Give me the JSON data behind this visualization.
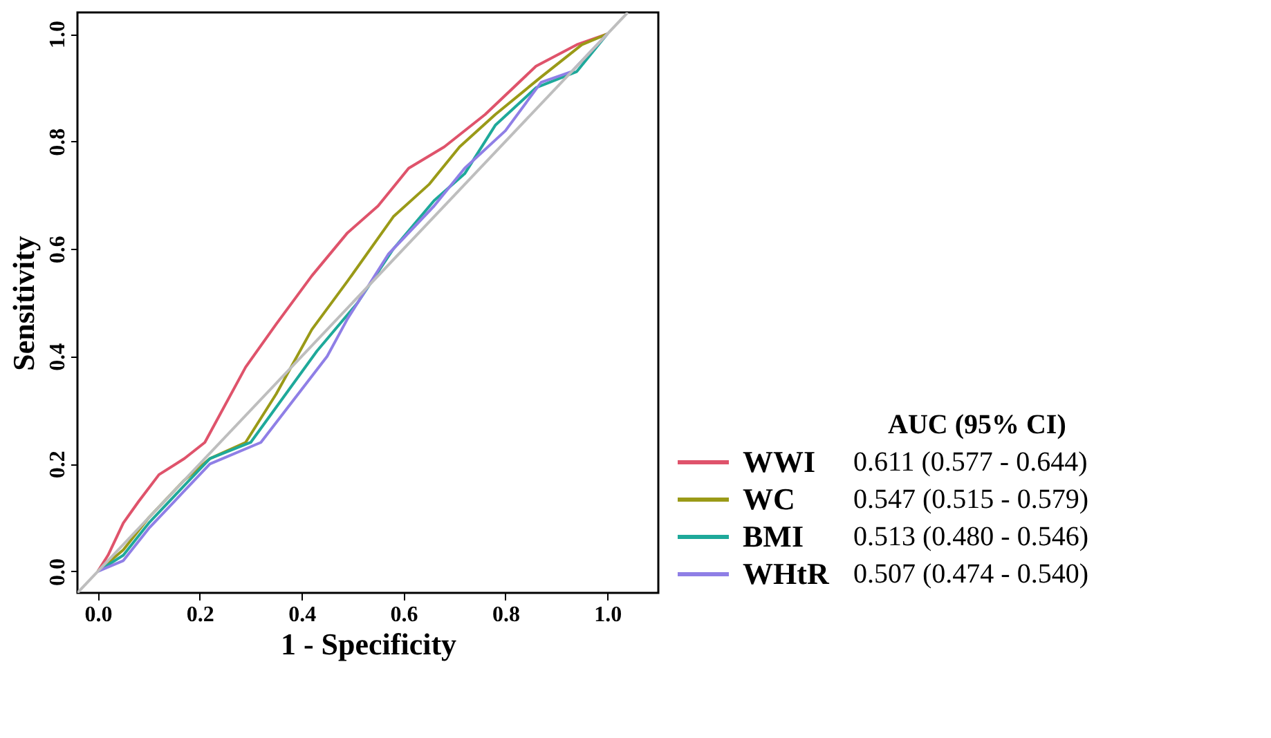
{
  "chart_data": {
    "type": "line",
    "xlabel": "1 - Specificity",
    "ylabel": "Sensitivity",
    "legend_title": "AUC (95% CI)",
    "xlim": [
      -0.04,
      1.1
    ],
    "ylim": [
      -0.04,
      1.04
    ],
    "xticks": [
      {
        "value": 0,
        "label": "0.0"
      },
      0.2,
      0.4,
      0.6,
      0.8,
      {
        "value": 1,
        "label": "1.0"
      }
    ],
    "yticks": [
      {
        "value": 0,
        "label": "0.0"
      },
      0.2,
      0.4,
      0.6,
      0.8,
      {
        "value": 1,
        "label": "1.0"
      }
    ],
    "grid": false,
    "legend": "right",
    "annotations": [
      "0.611 (0.577 - 0.644)",
      "0.547 (0.515 - 0.579)",
      "0.513 (0.480 - 0.546)",
      "0.507 (0.474 - 0.540)"
    ],
    "series": [
      {
        "name": "WWI",
        "color": "#df536b",
        "x": [
          0,
          0.02,
          0.05,
          0.08,
          0.12,
          0.17,
          0.21,
          0.29,
          0.35,
          0.42,
          0.49,
          0.55,
          0.61,
          0.68,
          0.76,
          0.86,
          0.94,
          1.0
        ],
        "values": [
          0,
          0.03,
          0.09,
          0.13,
          0.18,
          0.21,
          0.24,
          0.38,
          0.46,
          0.55,
          0.63,
          0.68,
          0.75,
          0.79,
          0.85,
          0.94,
          0.98,
          1.0
        ]
      },
      {
        "name": "WC",
        "color": "#9a9a17",
        "x": [
          0,
          0.05,
          0.1,
          0.17,
          0.22,
          0.29,
          0.35,
          0.42,
          0.49,
          0.58,
          0.65,
          0.71,
          0.78,
          0.87,
          0.95,
          1.0
        ],
        "values": [
          0,
          0.04,
          0.1,
          0.17,
          0.21,
          0.24,
          0.33,
          0.45,
          0.54,
          0.66,
          0.72,
          0.79,
          0.85,
          0.92,
          0.98,
          1.0
        ]
      },
      {
        "name": "BMI",
        "color": "#1ea99a",
        "x": [
          0,
          0.05,
          0.1,
          0.17,
          0.22,
          0.3,
          0.43,
          0.51,
          0.58,
          0.66,
          0.72,
          0.78,
          0.86,
          0.94,
          1.0
        ],
        "values": [
          0,
          0.03,
          0.09,
          0.16,
          0.21,
          0.24,
          0.41,
          0.5,
          0.6,
          0.69,
          0.74,
          0.83,
          0.9,
          0.93,
          1.0
        ]
      },
      {
        "name": "WHtR",
        "color": "#8f7fe6",
        "x": [
          0,
          0.05,
          0.1,
          0.17,
          0.22,
          0.32,
          0.45,
          0.49,
          0.57,
          0.66,
          0.72,
          0.8,
          0.87,
          0.93,
          1.0
        ],
        "values": [
          0,
          0.02,
          0.08,
          0.15,
          0.2,
          0.24,
          0.4,
          0.47,
          0.59,
          0.68,
          0.75,
          0.82,
          0.91,
          0.93,
          1.0
        ]
      },
      {
        "color": "#bebebe",
        "x": [
          -0.04,
          1.04
        ],
        "values": [
          -0.04,
          1.04
        ]
      }
    ]
  }
}
